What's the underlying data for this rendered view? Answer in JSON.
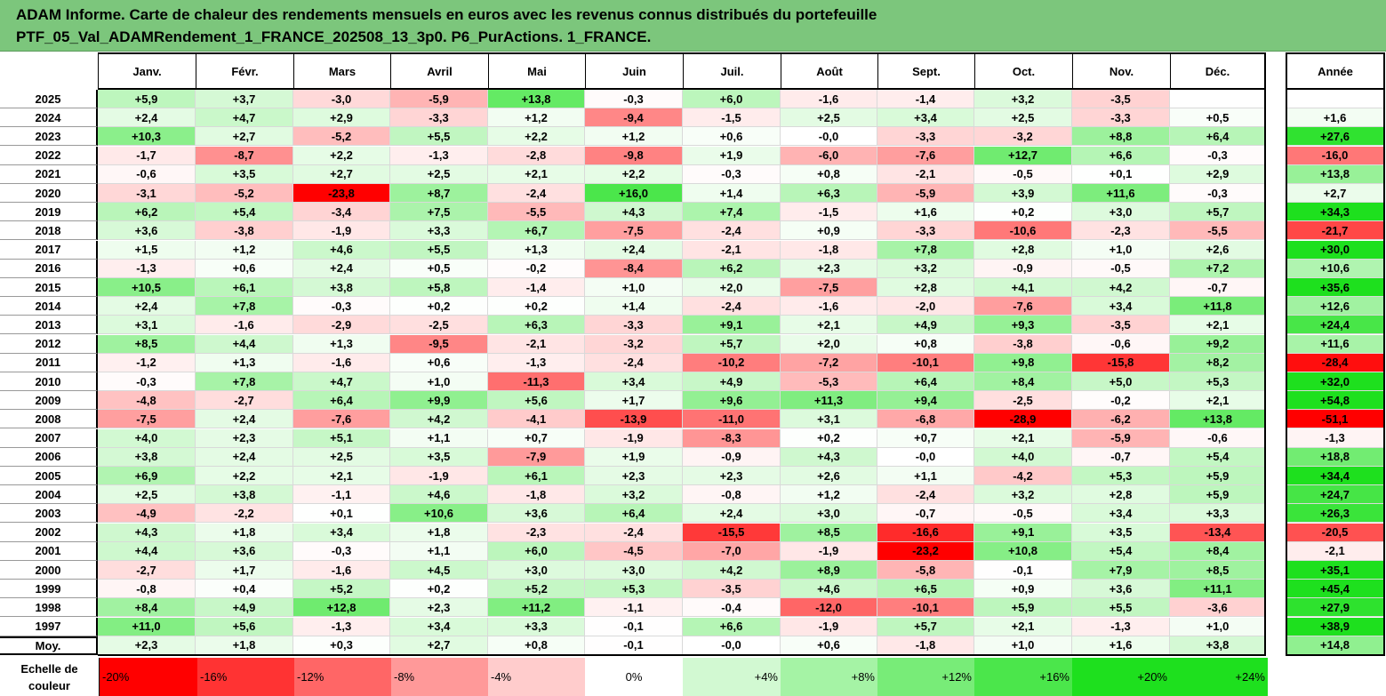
{
  "header": {
    "title_line1": "ADAM Informe. Carte de chaleur des rendements mensuels en euros avec les revenus connus distribués du portefeuille",
    "title_line2": "PTF_05_Val_ADAMRendement_1_FRANCE_202508_13_3p0. P6_PurActions. 1_FRANCE."
  },
  "colors": {
    "header_bg": "#7cc67c",
    "max_green": "#1ee01e",
    "max_red": "#ff0000",
    "neutral": "#ffffff"
  },
  "chart_data": {
    "type": "heatmap",
    "title": "ADAM Informe. Carte de chaleur des rendements mensuels en euros avec les revenus connus distribués du portefeuille",
    "subtitle": "PTF_05_Val_ADAMRendement_1_FRANCE_202508_13_3p0. P6_PurActions. 1_FRANCE.",
    "columns": [
      "Janv.",
      "Févr.",
      "Mars",
      "Avril",
      "Mai",
      "Juin",
      "Juil.",
      "Août",
      "Sept.",
      "Oct.",
      "Nov.",
      "Déc."
    ],
    "annual_label": "Année",
    "average_label": "Moy.",
    "rows": [
      {
        "year": "2025",
        "months": [
          "+5,9",
          "+3,7",
          "-3,0",
          "-5,9",
          "+13,8",
          "-0,3",
          "+6,0",
          "-1,6",
          "-1,4",
          "+3,2",
          "-3,5",
          ""
        ],
        "annual": ""
      },
      {
        "year": "2024",
        "months": [
          "+2,4",
          "+4,7",
          "+2,9",
          "-3,3",
          "+1,2",
          "-9,4",
          "-1,5",
          "+2,5",
          "+3,4",
          "+2,5",
          "-3,3",
          "+0,5"
        ],
        "annual": "+1,6"
      },
      {
        "year": "2023",
        "months": [
          "+10,3",
          "+2,7",
          "-5,2",
          "+5,5",
          "+2,2",
          "+1,2",
          "+0,6",
          "-0,0",
          "-3,3",
          "-3,2",
          "+8,8",
          "+6,4"
        ],
        "annual": "+27,6"
      },
      {
        "year": "2022",
        "months": [
          "-1,7",
          "-8,7",
          "+2,2",
          "-1,3",
          "-2,8",
          "-9,8",
          "+1,9",
          "-6,0",
          "-7,6",
          "+12,7",
          "+6,6",
          "-0,3"
        ],
        "annual": "-16,0"
      },
      {
        "year": "2021",
        "months": [
          "-0,6",
          "+3,5",
          "+2,7",
          "+2,5",
          "+2,1",
          "+2,2",
          "-0,3",
          "+0,8",
          "-2,1",
          "-0,5",
          "+0,1",
          "+2,9"
        ],
        "annual": "+13,8"
      },
      {
        "year": "2020",
        "months": [
          "-3,1",
          "-5,2",
          "-23,8",
          "+8,7",
          "-2,4",
          "+16,0",
          "+1,4",
          "+6,3",
          "-5,9",
          "+3,9",
          "+11,6",
          "-0,3"
        ],
        "annual": "+2,7"
      },
      {
        "year": "2019",
        "months": [
          "+6,2",
          "+5,4",
          "-3,4",
          "+7,5",
          "-5,5",
          "+4,3",
          "+7,4",
          "-1,5",
          "+1,6",
          "+0,2",
          "+3,0",
          "+5,7"
        ],
        "annual": "+34,3"
      },
      {
        "year": "2018",
        "months": [
          "+3,6",
          "-3,8",
          "-1,9",
          "+3,3",
          "+6,7",
          "-7,5",
          "-2,4",
          "+0,9",
          "-3,3",
          "-10,6",
          "-2,3",
          "-5,5"
        ],
        "annual": "-21,7"
      },
      {
        "year": "2017",
        "months": [
          "+1,5",
          "+1,2",
          "+4,6",
          "+5,5",
          "+1,3",
          "+2,4",
          "-2,1",
          "-1,8",
          "+7,8",
          "+2,8",
          "+1,0",
          "+2,6"
        ],
        "annual": "+30,0"
      },
      {
        "year": "2016",
        "months": [
          "-1,3",
          "+0,6",
          "+2,4",
          "+0,5",
          "-0,2",
          "-8,4",
          "+6,2",
          "+2,3",
          "+3,2",
          "-0,9",
          "-0,5",
          "+7,2"
        ],
        "annual": "+10,6"
      },
      {
        "year": "2015",
        "months": [
          "+10,5",
          "+6,1",
          "+3,8",
          "+5,8",
          "-1,4",
          "+1,0",
          "+2,0",
          "-7,5",
          "+2,8",
          "+4,1",
          "+4,2",
          "-0,7"
        ],
        "annual": "+35,6"
      },
      {
        "year": "2014",
        "months": [
          "+2,4",
          "+7,8",
          "-0,3",
          "+0,2",
          "+0,2",
          "+1,4",
          "-2,4",
          "-1,6",
          "-2,0",
          "-7,6",
          "+3,4",
          "+11,8"
        ],
        "annual": "+12,6"
      },
      {
        "year": "2013",
        "months": [
          "+3,1",
          "-1,6",
          "-2,9",
          "-2,5",
          "+6,3",
          "-3,3",
          "+9,1",
          "+2,1",
          "+4,9",
          "+9,3",
          "-3,5",
          "+2,1"
        ],
        "annual": "+24,4"
      },
      {
        "year": "2012",
        "months": [
          "+8,5",
          "+4,4",
          "+1,3",
          "-9,5",
          "-2,1",
          "-3,2",
          "+5,7",
          "+2,0",
          "+0,8",
          "-3,8",
          "-0,6",
          "+9,2"
        ],
        "annual": "+11,6"
      },
      {
        "year": "2011",
        "months": [
          "-1,2",
          "+1,3",
          "-1,6",
          "+0,6",
          "-1,3",
          "-2,4",
          "-10,2",
          "-7,2",
          "-10,1",
          "+9,8",
          "-15,8",
          "+8,2"
        ],
        "annual": "-28,4"
      },
      {
        "year": "2010",
        "months": [
          "-0,3",
          "+7,8",
          "+4,7",
          "+1,0",
          "-11,3",
          "+3,4",
          "+4,9",
          "-5,3",
          "+6,4",
          "+8,4",
          "+5,0",
          "+5,3"
        ],
        "annual": "+32,0"
      },
      {
        "year": "2009",
        "months": [
          "-4,8",
          "-2,7",
          "+6,4",
          "+9,9",
          "+5,6",
          "+1,7",
          "+9,6",
          "+11,3",
          "+9,4",
          "-2,5",
          "-0,2",
          "+2,1"
        ],
        "annual": "+54,8"
      },
      {
        "year": "2008",
        "months": [
          "-7,5",
          "+2,4",
          "-7,6",
          "+4,2",
          "-4,1",
          "-13,9",
          "-11,0",
          "+3,1",
          "-6,8",
          "-28,9",
          "-6,2",
          "+13,8"
        ],
        "annual": "-51,1"
      },
      {
        "year": "2007",
        "months": [
          "+4,0",
          "+2,3",
          "+5,1",
          "+1,1",
          "+0,7",
          "-1,9",
          "-8,3",
          "+0,2",
          "+0,7",
          "+2,1",
          "-5,9",
          "-0,6"
        ],
        "annual": "-1,3"
      },
      {
        "year": "2006",
        "months": [
          "+3,8",
          "+2,4",
          "+2,5",
          "+3,5",
          "-7,9",
          "+1,9",
          "-0,9",
          "+4,3",
          "-0,0",
          "+4,0",
          "-0,7",
          "+5,4"
        ],
        "annual": "+18,8"
      },
      {
        "year": "2005",
        "months": [
          "+6,9",
          "+2,2",
          "+2,1",
          "-1,9",
          "+6,1",
          "+2,3",
          "+2,3",
          "+2,6",
          "+1,1",
          "-4,2",
          "+5,3",
          "+5,9"
        ],
        "annual": "+34,4"
      },
      {
        "year": "2004",
        "months": [
          "+2,5",
          "+3,8",
          "-1,1",
          "+4,6",
          "-1,8",
          "+3,2",
          "-0,8",
          "+1,2",
          "-2,4",
          "+3,2",
          "+2,8",
          "+5,9"
        ],
        "annual": "+24,7"
      },
      {
        "year": "2003",
        "months": [
          "-4,9",
          "-2,2",
          "+0,1",
          "+10,6",
          "+3,6",
          "+6,4",
          "+2,4",
          "+3,0",
          "-0,7",
          "-0,5",
          "+3,4",
          "+3,3"
        ],
        "annual": "+26,3"
      },
      {
        "year": "2002",
        "months": [
          "+4,3",
          "+1,8",
          "+3,4",
          "+1,8",
          "-2,3",
          "-2,4",
          "-15,5",
          "+8,5",
          "-16,6",
          "+9,1",
          "+3,5",
          "-13,4"
        ],
        "annual": "-20,5"
      },
      {
        "year": "2001",
        "months": [
          "+4,4",
          "+3,6",
          "-0,3",
          "+1,1",
          "+6,0",
          "-4,5",
          "-7,0",
          "-1,9",
          "-23,2",
          "+10,8",
          "+5,4",
          "+8,4"
        ],
        "annual": "-2,1"
      },
      {
        "year": "2000",
        "months": [
          "-2,7",
          "+1,7",
          "-1,6",
          "+4,5",
          "+3,0",
          "+3,0",
          "+4,2",
          "+8,9",
          "-5,8",
          "-0,1",
          "+7,9",
          "+8,5"
        ],
        "annual": "+35,1"
      },
      {
        "year": "1999",
        "months": [
          "-0,8",
          "+0,4",
          "+5,2",
          "+0,2",
          "+5,2",
          "+5,3",
          "-3,5",
          "+4,6",
          "+6,5",
          "+0,9",
          "+3,6",
          "+11,1"
        ],
        "annual": "+45,4"
      },
      {
        "year": "1998",
        "months": [
          "+8,4",
          "+4,9",
          "+12,8",
          "+2,3",
          "+11,2",
          "-1,1",
          "-0,4",
          "-12,0",
          "-10,1",
          "+5,9",
          "+5,5",
          "-3,6"
        ],
        "annual": "+27,9"
      },
      {
        "year": "1997",
        "months": [
          "+11,0",
          "+5,6",
          "-1,3",
          "+3,4",
          "+3,3",
          "-0,1",
          "+6,6",
          "-1,9",
          "+5,7",
          "+2,1",
          "-1,3",
          "+1,0"
        ],
        "annual": "+38,9"
      }
    ],
    "average": {
      "months": [
        "+2,3",
        "+1,8",
        "+0,3",
        "+2,7",
        "+0,8",
        "-0,1",
        "-0,0",
        "+0,6",
        "-1,8",
        "+1,0",
        "+1,6",
        "+3,8"
      ],
      "annual": "+14,8"
    },
    "color_scale": {
      "label": "Echelle de couleur",
      "stops": [
        "-20%",
        "-16%",
        "-12%",
        "-8%",
        "-4%",
        "0%",
        "+4%",
        "+8%",
        "+12%",
        "+16%",
        "+20%",
        "+24%"
      ],
      "stop_values": [
        -20,
        -16,
        -12,
        -8,
        -4,
        0,
        4,
        8,
        12,
        16,
        20,
        24
      ]
    }
  }
}
